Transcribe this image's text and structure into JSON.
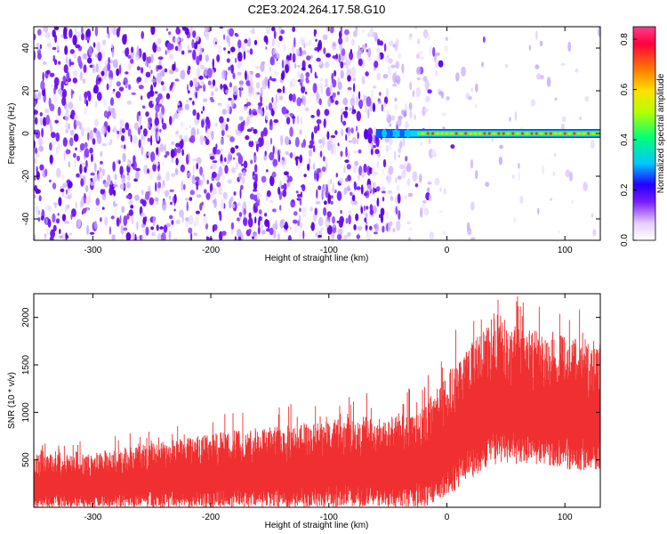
{
  "figure": {
    "title": "C2E3.2024.264.17.58.G10"
  },
  "chart_data": [
    {
      "type": "heatmap",
      "xlabel": "Height of straight line (km)",
      "ylabel": "Frequency (Hz)",
      "xlim": [
        -350,
        130
      ],
      "ylim": [
        -50,
        50
      ],
      "x_ticks": [
        -300,
        -200,
        -100,
        0,
        100
      ],
      "y_ticks": [
        -40,
        -20,
        0,
        20,
        40
      ],
      "colorbar": {
        "label": "Normalized spectral amplitude",
        "range": [
          0,
          0.85
        ],
        "ticks": [
          0.0,
          0.2,
          0.4,
          0.6,
          0.8
        ],
        "colormap": [
          "#ffffff",
          "#e6ccff",
          "#7a1cff",
          "#2200ff",
          "#00c8ff",
          "#00ff7a",
          "#b4ff00",
          "#ffe000",
          "#ff7a00",
          "#ff0040",
          "#ff3c8c"
        ]
      },
      "features": {
        "noise_band_x": [
          -350,
          -55
        ],
        "noise_fade_x": [
          -55,
          0
        ],
        "signal_line_frequency_hz": 0,
        "signal_line_x": [
          -60,
          130
        ]
      }
    },
    {
      "type": "line",
      "xlabel": "Height of straight line (km)",
      "ylabel": "SNR (10 * v/v)",
      "xlim": [
        -350,
        130
      ],
      "ylim": [
        0,
        2250
      ],
      "x_ticks": [
        -300,
        -200,
        -100,
        0,
        100
      ],
      "y_ticks": [
        500,
        1000,
        1500,
        2000
      ],
      "series_color": "#f03030",
      "envelope": {
        "x": [
          -350,
          -300,
          -260,
          -200,
          -150,
          -100,
          -50,
          -20,
          0,
          20,
          40,
          60,
          80,
          100,
          130
        ],
        "upper": [
          560,
          560,
          650,
          780,
          850,
          920,
          990,
          1050,
          1450,
          1700,
          2050,
          1900,
          1850,
          1800,
          1750
        ],
        "lower": [
          0,
          0,
          0,
          0,
          0,
          0,
          0,
          0,
          100,
          300,
          450,
          450,
          420,
          400,
          380
        ]
      }
    }
  ]
}
